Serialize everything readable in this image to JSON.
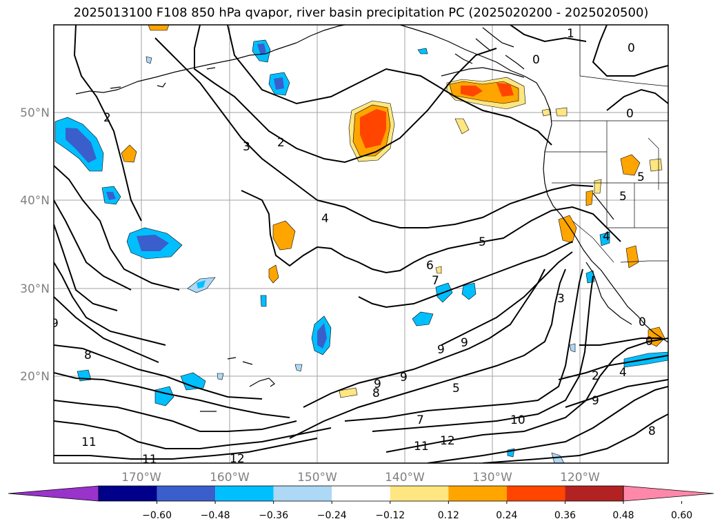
{
  "title": "2025013100 F108 850 hPa qvapor, river basin precipitation PC (2025020200 - 2025020500)",
  "map": {
    "lat_labels": [
      "50°N",
      "40°N",
      "30°N",
      "20°N"
    ],
    "lon_labels": [
      "170°W",
      "160°W",
      "150°W",
      "140°W",
      "130°W",
      "120°W"
    ],
    "contour_labels": [
      "1",
      "0",
      "0",
      "0",
      "2",
      "3",
      "2",
      "4",
      "5",
      "5",
      "6",
      "5",
      "4",
      "7",
      "3",
      "9",
      "9",
      "8",
      "9",
      "9",
      "8",
      "9",
      "5",
      "2",
      "4",
      "9",
      "7",
      "10",
      "11",
      "12",
      "11",
      "11",
      "12",
      "8",
      "0",
      "0"
    ]
  },
  "colorbar": {
    "colors": [
      "#9933cc",
      "#00008b",
      "#3a5fcd",
      "#00bfff",
      "#add8f6",
      "#ffffff",
      "#ffe680",
      "#ffa500",
      "#ff4500",
      "#b22222",
      "#ff88aa"
    ],
    "tick_labels": [
      "−0.60",
      "−0.48",
      "−0.36",
      "−0.24",
      "−0.12",
      "0.12",
      "0.24",
      "0.36",
      "0.48",
      "0.60"
    ]
  }
}
